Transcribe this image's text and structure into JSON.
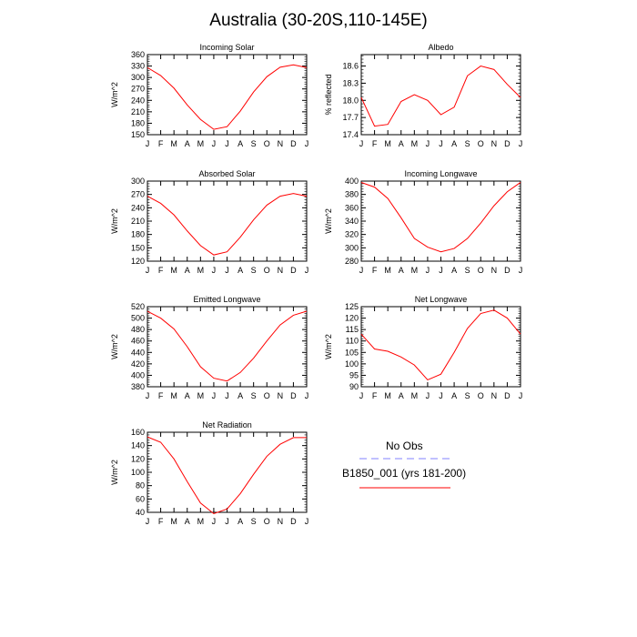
{
  "title": "Australia (30-20S,110-145E)",
  "legend": {
    "entries": [
      {
        "label": "No Obs",
        "color": "#8080ff",
        "dash": true
      },
      {
        "label": "B1850_001 (yrs 181-200)",
        "color": "#ff0000",
        "dash": false
      }
    ]
  },
  "chart_data": [
    {
      "type": "line",
      "title": "Incoming Solar",
      "ylabel": "W/m^2",
      "x": [
        "J",
        "F",
        "M",
        "A",
        "M",
        "J",
        "J",
        "A",
        "S",
        "O",
        "N",
        "D",
        "J"
      ],
      "ylim": [
        150,
        360
      ],
      "yticks": [
        "150",
        "180",
        "210",
        "240",
        "270",
        "300",
        "330",
        "360"
      ],
      "series": [
        {
          "name": "B1850_001 (yrs 181-200)",
          "color": "#ff0000",
          "values": [
            326,
            305,
            272,
            228,
            190,
            164,
            171,
            212,
            262,
            302,
            327,
            333,
            326
          ]
        }
      ]
    },
    {
      "type": "line",
      "title": "Albedo",
      "ylabel": "% reflected",
      "x": [
        "J",
        "F",
        "M",
        "A",
        "M",
        "J",
        "J",
        "A",
        "S",
        "O",
        "N",
        "D",
        "J"
      ],
      "ylim": [
        17.4,
        18.8
      ],
      "yticks": [
        "17.4",
        "17.7",
        "18.0",
        "18.3",
        "18.6"
      ],
      "series": [
        {
          "name": "B1850_001 (yrs 181-200)",
          "color": "#ff0000",
          "values": [
            18.05,
            17.55,
            17.58,
            17.98,
            18.1,
            18.0,
            17.75,
            17.88,
            18.43,
            18.6,
            18.54,
            18.28,
            18.05
          ]
        }
      ]
    },
    {
      "type": "line",
      "title": "Absorbed Solar",
      "ylabel": "W/m^2",
      "x": [
        "J",
        "F",
        "M",
        "A",
        "M",
        "J",
        "J",
        "A",
        "S",
        "O",
        "N",
        "D",
        "J"
      ],
      "ylim": [
        120,
        300
      ],
      "yticks": [
        "120",
        "150",
        "180",
        "210",
        "240",
        "270",
        "300"
      ],
      "series": [
        {
          "name": "B1850_001 (yrs 181-200)",
          "color": "#ff0000",
          "values": [
            266,
            250,
            224,
            188,
            155,
            134,
            141,
            174,
            213,
            246,
            266,
            272,
            266
          ]
        }
      ]
    },
    {
      "type": "line",
      "title": "Incoming Longwave",
      "ylabel": "W/m^2",
      "x": [
        "J",
        "F",
        "M",
        "A",
        "M",
        "J",
        "J",
        "A",
        "S",
        "O",
        "N",
        "D",
        "J"
      ],
      "ylim": [
        280,
        400
      ],
      "yticks": [
        "280",
        "300",
        "320",
        "340",
        "360",
        "380",
        "400"
      ],
      "series": [
        {
          "name": "B1850_001 (yrs 181-200)",
          "color": "#ff0000",
          "values": [
            398,
            391,
            374,
            345,
            314,
            301,
            294,
            299,
            314,
            337,
            363,
            384,
            398
          ]
        }
      ]
    },
    {
      "type": "line",
      "title": "Emitted Longwave",
      "ylabel": "W/m^2",
      "x": [
        "J",
        "F",
        "M",
        "A",
        "M",
        "J",
        "J",
        "A",
        "S",
        "O",
        "N",
        "D",
        "J"
      ],
      "ylim": [
        380,
        520
      ],
      "yticks": [
        "380",
        "400",
        "420",
        "440",
        "460",
        "480",
        "500",
        "520"
      ],
      "series": [
        {
          "name": "B1850_001 (yrs 181-200)",
          "color": "#ff0000",
          "values": [
            512,
            500,
            481,
            450,
            415,
            395,
            390,
            405,
            430,
            460,
            488,
            505,
            512
          ]
        }
      ]
    },
    {
      "type": "line",
      "title": "Net Longwave",
      "ylabel": "W/m^2",
      "x": [
        "J",
        "F",
        "M",
        "A",
        "M",
        "J",
        "J",
        "A",
        "S",
        "O",
        "N",
        "D",
        "J"
      ],
      "ylim": [
        90,
        125
      ],
      "yticks": [
        "90",
        "95",
        "100",
        "105",
        "110",
        "115",
        "120",
        "125"
      ],
      "series": [
        {
          "name": "B1850_001 (yrs 181-200)",
          "color": "#ff0000",
          "values": [
            113,
            106.5,
            105.5,
            103,
            99.5,
            93,
            95.5,
            105,
            115.5,
            122,
            123.5,
            120,
            113
          ]
        }
      ]
    },
    {
      "type": "line",
      "title": "Net Radiation",
      "ylabel": "W/m^2",
      "x": [
        "J",
        "F",
        "M",
        "A",
        "M",
        "J",
        "J",
        "A",
        "S",
        "O",
        "N",
        "D",
        "J"
      ],
      "ylim": [
        40,
        160
      ],
      "yticks": [
        "40",
        "60",
        "80",
        "100",
        "120",
        "140",
        "160"
      ],
      "series": [
        {
          "name": "B1850_001 (yrs 181-200)",
          "color": "#ff0000",
          "values": [
            153,
            145,
            120,
            86,
            54,
            38,
            45,
            68,
            97,
            124,
            142,
            152,
            152
          ]
        }
      ]
    }
  ]
}
